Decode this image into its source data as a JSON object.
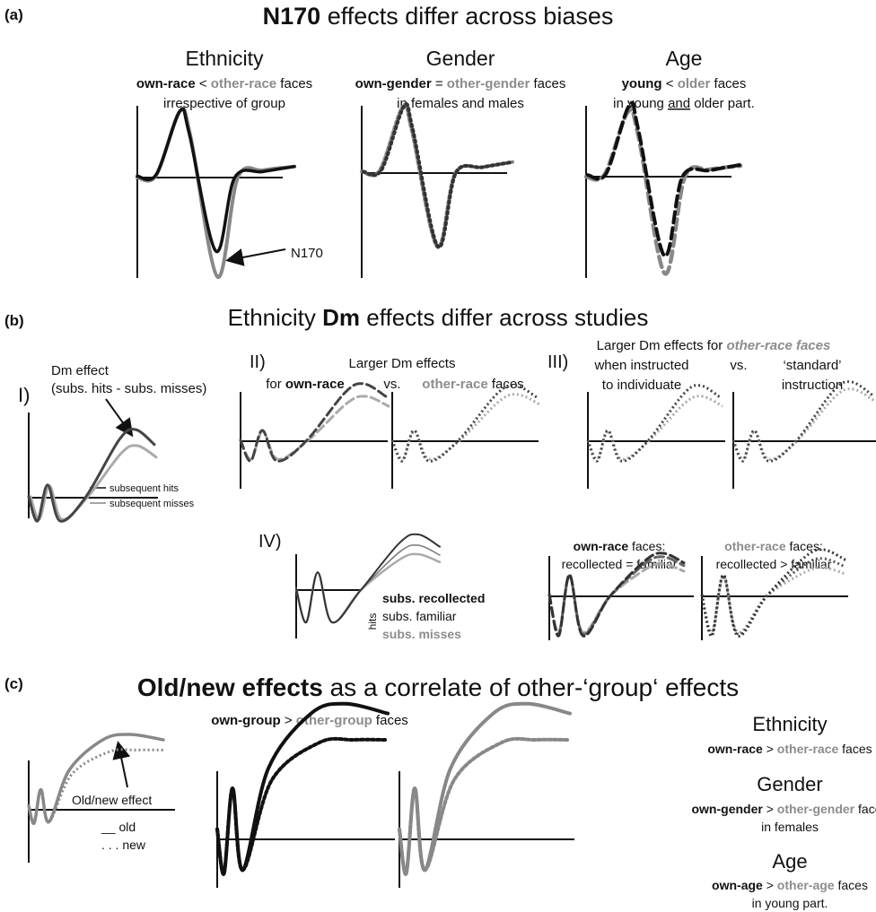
{
  "panel_a": {
    "label": "(a)",
    "title": [
      "N170",
      " effects differ across biases"
    ],
    "ethnicity": {
      "heading": "Ethnicity",
      "line1": [
        "own-race",
        " < ",
        "other-race",
        " faces"
      ],
      "line2": "irrespective of group"
    },
    "gender": {
      "heading": "Gender",
      "line1": [
        "own-gender",
        " = ",
        "other-gender",
        " faces"
      ],
      "line2": "in females and males"
    },
    "age": {
      "heading": "Age",
      "line1": [
        "young",
        " < ",
        "older",
        " faces"
      ],
      "line2": [
        "in young ",
        "and",
        " older part."
      ]
    },
    "annotation": "N170"
  },
  "panel_b": {
    "label": "(b)",
    "title": [
      "Ethnicity ",
      "Dm",
      " effects differ across studies"
    ],
    "study_1": {
      "label": "I)",
      "annotation": [
        "Dm effect",
        "(subs. hits - subs. misses)"
      ],
      "legend": [
        "subsequent hits",
        "subsequent misses"
      ]
    },
    "study_2": {
      "label": "II)",
      "title": "Larger Dm effects",
      "left": [
        "for ",
        "own-race"
      ],
      "vs": "vs.",
      "right": [
        "other-race",
        " faces"
      ]
    },
    "study_3": {
      "label": "III)",
      "title": [
        "Larger Dm effects for ",
        "other-race faces"
      ],
      "left": [
        "when instructed",
        "to individuate"
      ],
      "vs": "vs.",
      "right": [
        "‘standard’",
        "instruction"
      ]
    },
    "study_4": {
      "label": "IV)",
      "axis_note": "hits",
      "legend": [
        "subs. recollected",
        "subs. familiar",
        "subs. misses"
      ],
      "left": {
        "title": [
          "own-race",
          " faces:"
        ],
        "subtitle": "recollected = familiar"
      },
      "right": {
        "title": [
          "other-race",
          " faces:"
        ],
        "subtitle": "recollected > familiar"
      }
    }
  },
  "panel_c": {
    "label": "(c)",
    "title": [
      "Old/new effects",
      " as a correlate of other-‘group‘ effects"
    ],
    "annotation": "Old/new effect",
    "legend": [
      "__ old",
      ". . . new"
    ],
    "comparison": [
      "own-group",
      " > ",
      "other-group",
      " faces"
    ],
    "biases": [
      {
        "heading": "Ethnicity",
        "line1": [
          "own-race",
          " > ",
          "other-race",
          " faces"
        ]
      },
      {
        "heading": "Gender",
        "line1": [
          "own-gender",
          " > ",
          "other-gender",
          " faces"
        ],
        "line2": "in females"
      },
      {
        "heading": "Age",
        "line1": [
          "own-age",
          " > ",
          "other-age",
          " faces"
        ],
        "line2": "in young part."
      }
    ]
  }
}
